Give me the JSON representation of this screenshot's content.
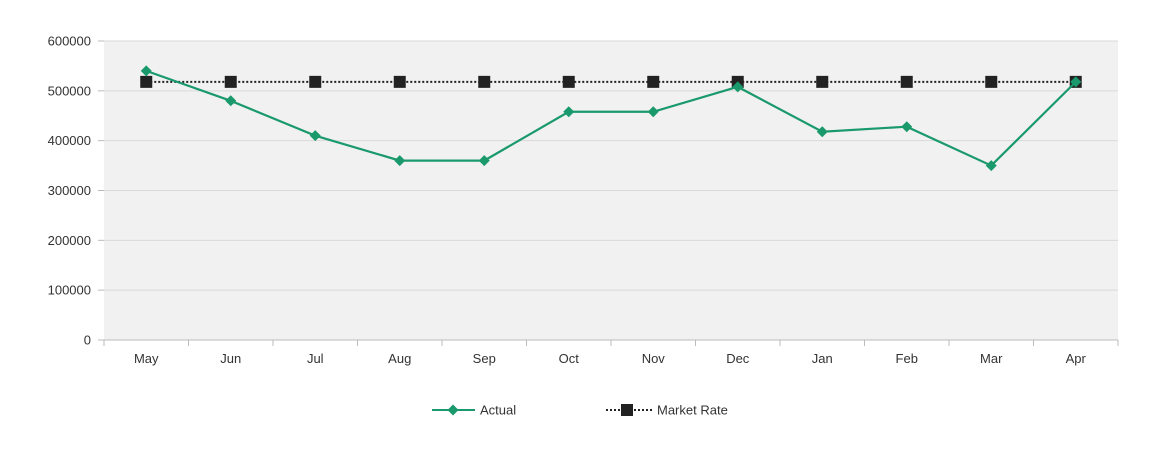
{
  "chart_data": {
    "type": "line",
    "categories": [
      "May",
      "Jun",
      "Jul",
      "Aug",
      "Sep",
      "Oct",
      "Nov",
      "Dec",
      "Jan",
      "Feb",
      "Mar",
      "Apr"
    ],
    "series": [
      {
        "name": "Actual",
        "values": [
          540000,
          480000,
          410000,
          360000,
          360000,
          458000,
          458000,
          508000,
          418000,
          428000,
          350000,
          518000
        ],
        "color": "#1a9a6c",
        "line_style": "solid",
        "marker": "diamond"
      },
      {
        "name": "Market Rate",
        "values": [
          518000,
          518000,
          518000,
          518000,
          518000,
          518000,
          518000,
          518000,
          518000,
          518000,
          518000,
          518000
        ],
        "color": "#222222",
        "line_style": "dotted",
        "marker": "square"
      }
    ],
    "y_ticks": [
      "0",
      "100000",
      "200000",
      "300000",
      "400000",
      "500000",
      "600000"
    ],
    "ylim": [
      0,
      600000
    ],
    "grid": true,
    "plot_background": "#f1f1f1",
    "legend_position": "bottom"
  }
}
